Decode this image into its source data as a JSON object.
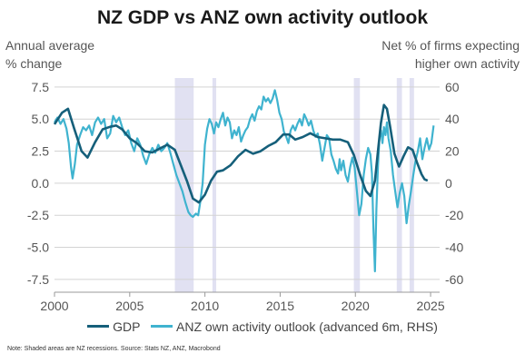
{
  "title": "NZ GDP vs ANZ own activity outlook",
  "left_axis_label": [
    "Annual average",
    "% change"
  ],
  "right_axis_label": [
    "Net % of firms expecting",
    "higher own activity"
  ],
  "note": "Note: Shaded areas are NZ recessions.  Source: Stats NZ, ANZ, Macrobond",
  "colors": {
    "gdp": "#155f7a",
    "anz": "#3fb3cf",
    "recession": "#e1e1f2",
    "grid": "#d3d3d3"
  },
  "chart_data": {
    "type": "line",
    "title": "NZ GDP vs ANZ own activity outlook",
    "xlabel": "",
    "xlim": [
      2000,
      2025.6
    ],
    "x_ticks": [
      "2000",
      "2005",
      "2010",
      "2015",
      "2020",
      "2025"
    ],
    "y_left": {
      "label": "Annual average % change",
      "ylim": [
        -8.5,
        8.2
      ],
      "ticks": [
        "7.5",
        "5.0",
        "2.5",
        "0.0",
        "-2.5",
        "-5.0",
        "-7.5"
      ]
    },
    "y_right": {
      "label": "Net % of firms expecting higher own activity",
      "ylim": [
        -68,
        65.6
      ],
      "ticks": [
        "60",
        "40",
        "20",
        "0",
        "-20",
        "-40",
        "-60"
      ]
    },
    "recessions": [
      [
        2008.0,
        2009.25
      ],
      [
        2010.5,
        2010.75
      ],
      [
        2019.9,
        2020.3
      ],
      [
        2022.75,
        2023.1
      ],
      [
        2023.6,
        2023.9
      ]
    ],
    "series": [
      {
        "name": "GDP",
        "axis": "left",
        "points": [
          [
            2000.0,
            4.6
          ],
          [
            2000.5,
            5.5
          ],
          [
            2000.9,
            5.8
          ],
          [
            2001.3,
            4.3
          ],
          [
            2001.8,
            2.5
          ],
          [
            2002.2,
            2.0
          ],
          [
            2002.7,
            3.2
          ],
          [
            2003.2,
            4.2
          ],
          [
            2003.7,
            4.4
          ],
          [
            2004.1,
            4.5
          ],
          [
            2004.5,
            4.2
          ],
          [
            2005.0,
            3.5
          ],
          [
            2005.5,
            3.1
          ],
          [
            2006.0,
            2.5
          ],
          [
            2006.5,
            2.4
          ],
          [
            2007.0,
            2.7
          ],
          [
            2007.5,
            3.0
          ],
          [
            2008.0,
            2.6
          ],
          [
            2008.4,
            1.4
          ],
          [
            2008.8,
            0.2
          ],
          [
            2009.2,
            -1.2
          ],
          [
            2009.6,
            -1.5
          ],
          [
            2010.0,
            -0.9
          ],
          [
            2010.4,
            0.2
          ],
          [
            2010.8,
            0.9
          ],
          [
            2011.2,
            1.0
          ],
          [
            2011.7,
            1.4
          ],
          [
            2012.2,
            2.1
          ],
          [
            2012.7,
            2.6
          ],
          [
            2013.2,
            2.3
          ],
          [
            2013.7,
            2.5
          ],
          [
            2014.2,
            2.9
          ],
          [
            2014.7,
            3.2
          ],
          [
            2015.2,
            3.8
          ],
          [
            2015.6,
            3.8
          ],
          [
            2016.0,
            3.4
          ],
          [
            2016.5,
            3.6
          ],
          [
            2017.0,
            3.9
          ],
          [
            2017.5,
            3.6
          ],
          [
            2018.0,
            3.5
          ],
          [
            2018.5,
            3.4
          ],
          [
            2019.0,
            3.4
          ],
          [
            2019.5,
            3.2
          ],
          [
            2019.9,
            2.2
          ],
          [
            2020.3,
            0.7
          ],
          [
            2020.7,
            -0.6
          ],
          [
            2021.0,
            -1.0
          ],
          [
            2021.3,
            0.2
          ],
          [
            2021.5,
            2.5
          ],
          [
            2021.7,
            4.7
          ],
          [
            2021.9,
            6.1
          ],
          [
            2022.1,
            5.8
          ],
          [
            2022.3,
            4.5
          ],
          [
            2022.6,
            2.3
          ],
          [
            2022.9,
            1.3
          ],
          [
            2023.2,
            2.1
          ],
          [
            2023.5,
            2.8
          ],
          [
            2023.8,
            2.6
          ],
          [
            2024.1,
            1.6
          ],
          [
            2024.4,
            0.7
          ],
          [
            2024.6,
            0.3
          ],
          [
            2024.8,
            0.2
          ]
        ]
      },
      {
        "name": "ANZ own activity outlook (advanced 6m, RHS)",
        "axis": "right",
        "points": [
          [
            2000.0,
            38
          ],
          [
            2000.2,
            41
          ],
          [
            2000.4,
            37
          ],
          [
            2000.6,
            40
          ],
          [
            2000.8,
            34
          ],
          [
            2000.95,
            25
          ],
          [
            2001.1,
            10
          ],
          [
            2001.2,
            3
          ],
          [
            2001.35,
            12
          ],
          [
            2001.5,
            24
          ],
          [
            2001.7,
            30
          ],
          [
            2001.9,
            35
          ],
          [
            2002.1,
            33
          ],
          [
            2002.3,
            36
          ],
          [
            2002.5,
            30
          ],
          [
            2002.7,
            38
          ],
          [
            2002.9,
            41
          ],
          [
            2003.1,
            37
          ],
          [
            2003.3,
            40
          ],
          [
            2003.5,
            28
          ],
          [
            2003.7,
            31
          ],
          [
            2003.9,
            42
          ],
          [
            2004.1,
            38
          ],
          [
            2004.3,
            41
          ],
          [
            2004.5,
            35
          ],
          [
            2004.7,
            30
          ],
          [
            2004.9,
            33
          ],
          [
            2005.1,
            25
          ],
          [
            2005.3,
            20
          ],
          [
            2005.5,
            28
          ],
          [
            2005.7,
            24
          ],
          [
            2005.9,
            17
          ],
          [
            2006.1,
            12
          ],
          [
            2006.3,
            18
          ],
          [
            2006.5,
            22
          ],
          [
            2006.7,
            19
          ],
          [
            2006.9,
            24
          ],
          [
            2007.1,
            20
          ],
          [
            2007.3,
            22
          ],
          [
            2007.5,
            25
          ],
          [
            2007.7,
            19
          ],
          [
            2007.9,
            12
          ],
          [
            2008.1,
            5
          ],
          [
            2008.3,
            0
          ],
          [
            2008.5,
            -5
          ],
          [
            2008.7,
            -12
          ],
          [
            2008.9,
            -18
          ],
          [
            2009.05,
            -20
          ],
          [
            2009.2,
            -21
          ],
          [
            2009.4,
            -19
          ],
          [
            2009.55,
            -20
          ],
          [
            2009.7,
            -11
          ],
          [
            2009.85,
            0
          ],
          [
            2010.0,
            24
          ],
          [
            2010.15,
            34
          ],
          [
            2010.3,
            40
          ],
          [
            2010.45,
            37
          ],
          [
            2010.6,
            31
          ],
          [
            2010.75,
            38
          ],
          [
            2010.9,
            35
          ],
          [
            2011.05,
            40
          ],
          [
            2011.2,
            44
          ],
          [
            2011.35,
            36
          ],
          [
            2011.5,
            41
          ],
          [
            2011.65,
            38
          ],
          [
            2011.8,
            28
          ],
          [
            2011.95,
            33
          ],
          [
            2012.1,
            30
          ],
          [
            2012.25,
            35
          ],
          [
            2012.4,
            26
          ],
          [
            2012.55,
            30
          ],
          [
            2012.7,
            33
          ],
          [
            2012.85,
            35
          ],
          [
            2013.0,
            40
          ],
          [
            2013.15,
            43
          ],
          [
            2013.3,
            39
          ],
          [
            2013.45,
            45
          ],
          [
            2013.6,
            48
          ],
          [
            2013.75,
            46
          ],
          [
            2013.9,
            54
          ],
          [
            2014.05,
            51
          ],
          [
            2014.2,
            53
          ],
          [
            2014.35,
            50
          ],
          [
            2014.5,
            53
          ],
          [
            2014.65,
            58
          ],
          [
            2014.8,
            52
          ],
          [
            2014.95,
            44
          ],
          [
            2015.1,
            40
          ],
          [
            2015.25,
            32
          ],
          [
            2015.4,
            29
          ],
          [
            2015.55,
            25
          ],
          [
            2015.7,
            33
          ],
          [
            2015.85,
            36
          ],
          [
            2016.0,
            33
          ],
          [
            2016.15,
            37
          ],
          [
            2016.3,
            40
          ],
          [
            2016.45,
            36
          ],
          [
            2016.6,
            43
          ],
          [
            2016.75,
            40
          ],
          [
            2016.9,
            36
          ],
          [
            2017.05,
            39
          ],
          [
            2017.2,
            33
          ],
          [
            2017.35,
            29
          ],
          [
            2017.5,
            31
          ],
          [
            2017.65,
            24
          ],
          [
            2017.8,
            14
          ],
          [
            2017.95,
            22
          ],
          [
            2018.1,
            30
          ],
          [
            2018.25,
            28
          ],
          [
            2018.4,
            18
          ],
          [
            2018.55,
            14
          ],
          [
            2018.7,
            9
          ],
          [
            2018.85,
            6
          ],
          [
            2018.95,
            15
          ],
          [
            2019.05,
            8
          ],
          [
            2019.2,
            14
          ],
          [
            2019.35,
            5
          ],
          [
            2019.5,
            1
          ],
          [
            2019.65,
            10
          ],
          [
            2019.8,
            16
          ],
          [
            2019.95,
            10
          ],
          [
            2020.1,
            -5
          ],
          [
            2020.25,
            -20
          ],
          [
            2020.4,
            -13
          ],
          [
            2020.55,
            5
          ],
          [
            2020.7,
            15
          ],
          [
            2020.85,
            22
          ],
          [
            2021.0,
            18
          ],
          [
            2021.1,
            6
          ],
          [
            2021.2,
            -28
          ],
          [
            2021.3,
            -55
          ],
          [
            2021.4,
            -16
          ],
          [
            2021.5,
            10
          ],
          [
            2021.6,
            28
          ],
          [
            2021.7,
            33
          ],
          [
            2021.8,
            25
          ],
          [
            2021.9,
            35
          ],
          [
            2022.0,
            30
          ],
          [
            2022.1,
            38
          ],
          [
            2022.2,
            28
          ],
          [
            2022.35,
            20
          ],
          [
            2022.5,
            5
          ],
          [
            2022.65,
            -5
          ],
          [
            2022.8,
            -15
          ],
          [
            2022.95,
            -6
          ],
          [
            2023.1,
            0
          ],
          [
            2023.25,
            -8
          ],
          [
            2023.4,
            -25
          ],
          [
            2023.55,
            -14
          ],
          [
            2023.7,
            -5
          ],
          [
            2023.85,
            5
          ],
          [
            2024.0,
            14
          ],
          [
            2024.15,
            20
          ],
          [
            2024.3,
            28
          ],
          [
            2024.45,
            15
          ],
          [
            2024.6,
            22
          ],
          [
            2024.75,
            28
          ],
          [
            2024.9,
            21
          ],
          [
            2025.05,
            25
          ],
          [
            2025.2,
            36
          ]
        ]
      }
    ]
  },
  "legend": [
    {
      "label": "GDP",
      "color": "#155f7a"
    },
    {
      "label": "ANZ own activity outlook (advanced 6m, RHS)",
      "color": "#3fb3cf"
    }
  ]
}
